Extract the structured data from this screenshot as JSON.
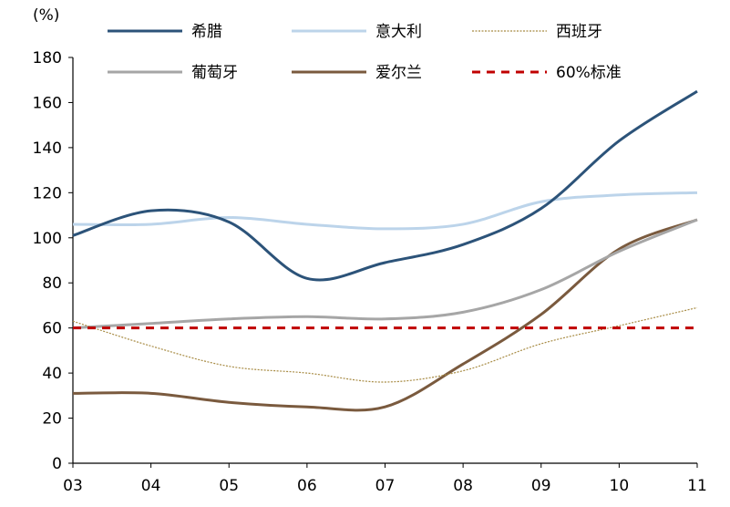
{
  "chart_data": {
    "type": "line",
    "y_unit": "(%)",
    "x": [
      "03",
      "04",
      "05",
      "06",
      "07",
      "08",
      "09",
      "10",
      "11"
    ],
    "ylim": [
      0,
      180
    ],
    "yticks": [
      "0",
      "20",
      "40",
      "60",
      "80",
      "100",
      "120",
      "140",
      "160",
      "180"
    ],
    "grid": false,
    "legend_position": "top",
    "series": [
      {
        "name": "希腊",
        "color": "#2c5379",
        "style": "solid",
        "width": "thick",
        "values": [
          101,
          112,
          107,
          82,
          89,
          97,
          113,
          143,
          165
        ]
      },
      {
        "name": "意大利",
        "color": "#bcd4ea",
        "style": "solid",
        "width": "thick",
        "values": [
          106,
          106,
          109,
          106,
          104,
          106,
          116,
          119,
          120
        ]
      },
      {
        "name": "西班牙",
        "color": "#a88c45",
        "style": "dotted",
        "width": "thin",
        "values": [
          63,
          52,
          43,
          40,
          36,
          41,
          53,
          61,
          69
        ]
      },
      {
        "name": "葡萄牙",
        "color": "#a6a6a6",
        "style": "solid",
        "width": "thick",
        "values": [
          60,
          62,
          64,
          65,
          64,
          67,
          77,
          94,
          108
        ]
      },
      {
        "name": "爱尔兰",
        "color": "#7a5a3e",
        "style": "solid",
        "width": "thick",
        "values": [
          31,
          31,
          27,
          25,
          25,
          44,
          66,
          95,
          108
        ]
      },
      {
        "name": "60%标准",
        "color": "#c00000",
        "style": "dashed",
        "width": "thick",
        "values": [
          60,
          60,
          60,
          60,
          60,
          60,
          60,
          60,
          60
        ]
      }
    ]
  }
}
